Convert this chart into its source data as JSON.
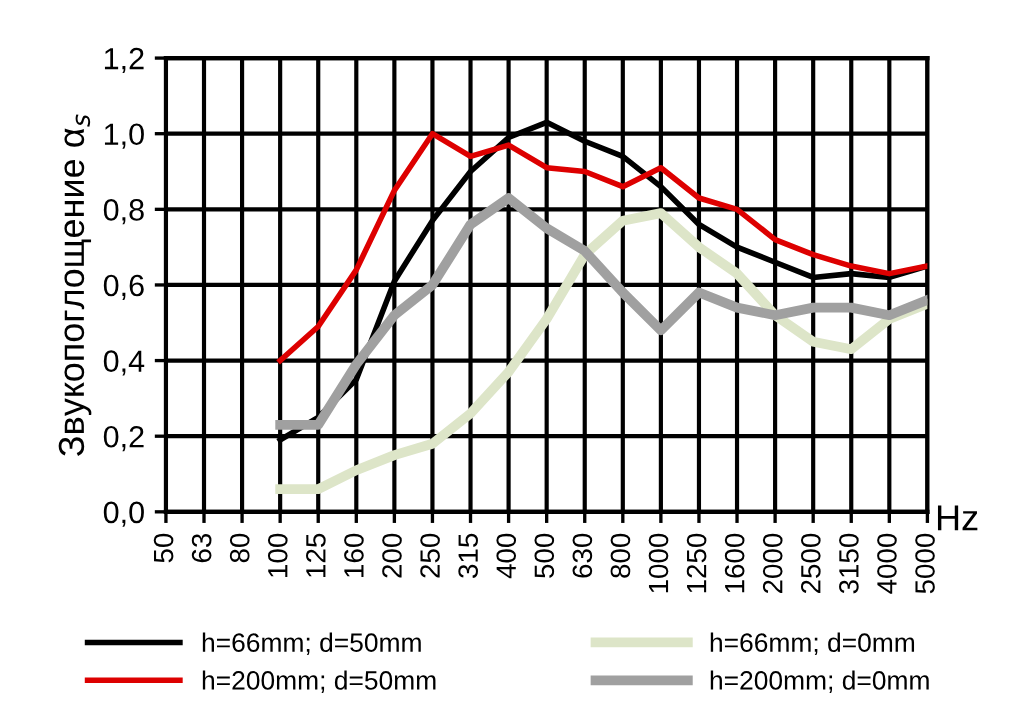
{
  "chart_data": {
    "type": "line",
    "xlabel": "Hz",
    "ylabel": "Звукопоглощение α$_{s}$",
    "categories": [
      "50",
      "63",
      "80",
      "100",
      "125",
      "160",
      "200",
      "250",
      "315",
      "400",
      "500",
      "630",
      "800",
      "1000",
      "1250",
      "1600",
      "2000",
      "2500",
      "3150",
      "4000",
      "5000"
    ],
    "series": [
      {
        "name": "h=66mm; d=50mm",
        "color": "#000000",
        "values": [
          null,
          null,
          null,
          0.19,
          0.25,
          0.35,
          0.61,
          0.77,
          0.9,
          0.99,
          1.03,
          0.98,
          0.94,
          0.86,
          0.76,
          0.7,
          0.66,
          0.62,
          0.63,
          0.62,
          0.65
        ]
      },
      {
        "name": "h=200mm; d=50mm",
        "color": "#dd0000",
        "values": [
          null,
          null,
          null,
          0.4,
          0.49,
          0.64,
          0.85,
          1.0,
          0.94,
          0.97,
          0.91,
          0.9,
          0.86,
          0.91,
          0.83,
          0.8,
          0.72,
          0.68,
          0.65,
          0.63,
          0.65
        ]
      },
      {
        "name": "h=66mm; d=0mm",
        "color": "#dde5c8",
        "values": [
          null,
          null,
          null,
          0.06,
          0.06,
          0.11,
          0.15,
          0.18,
          0.26,
          0.37,
          0.51,
          0.68,
          0.77,
          0.79,
          0.7,
          0.63,
          0.52,
          0.45,
          0.43,
          0.51,
          0.55
        ]
      },
      {
        "name": "h=200mm; d=0mm",
        "color": "#a0a0a0",
        "values": [
          null,
          null,
          null,
          0.23,
          0.23,
          0.39,
          0.52,
          0.6,
          0.76,
          0.83,
          0.75,
          0.69,
          0.58,
          0.48,
          0.58,
          0.54,
          0.52,
          0.54,
          0.54,
          0.52,
          0.56
        ]
      }
    ],
    "ylim": [
      0,
      1.2
    ],
    "yticks": [
      {
        "value": 0,
        "label": "0,0"
      },
      {
        "value": 0.2,
        "label": "0,2"
      },
      {
        "value": 0.4,
        "label": "0,4"
      },
      {
        "value": 0.6,
        "label": "0,6"
      },
      {
        "value": 0.8,
        "label": "0,8"
      },
      {
        "value": 1.0,
        "label": "1,0"
      },
      {
        "value": 1.2,
        "label": "1,2"
      }
    ],
    "grid": true,
    "legend": "bottom",
    "marker": "none",
    "line_style": "solid"
  }
}
